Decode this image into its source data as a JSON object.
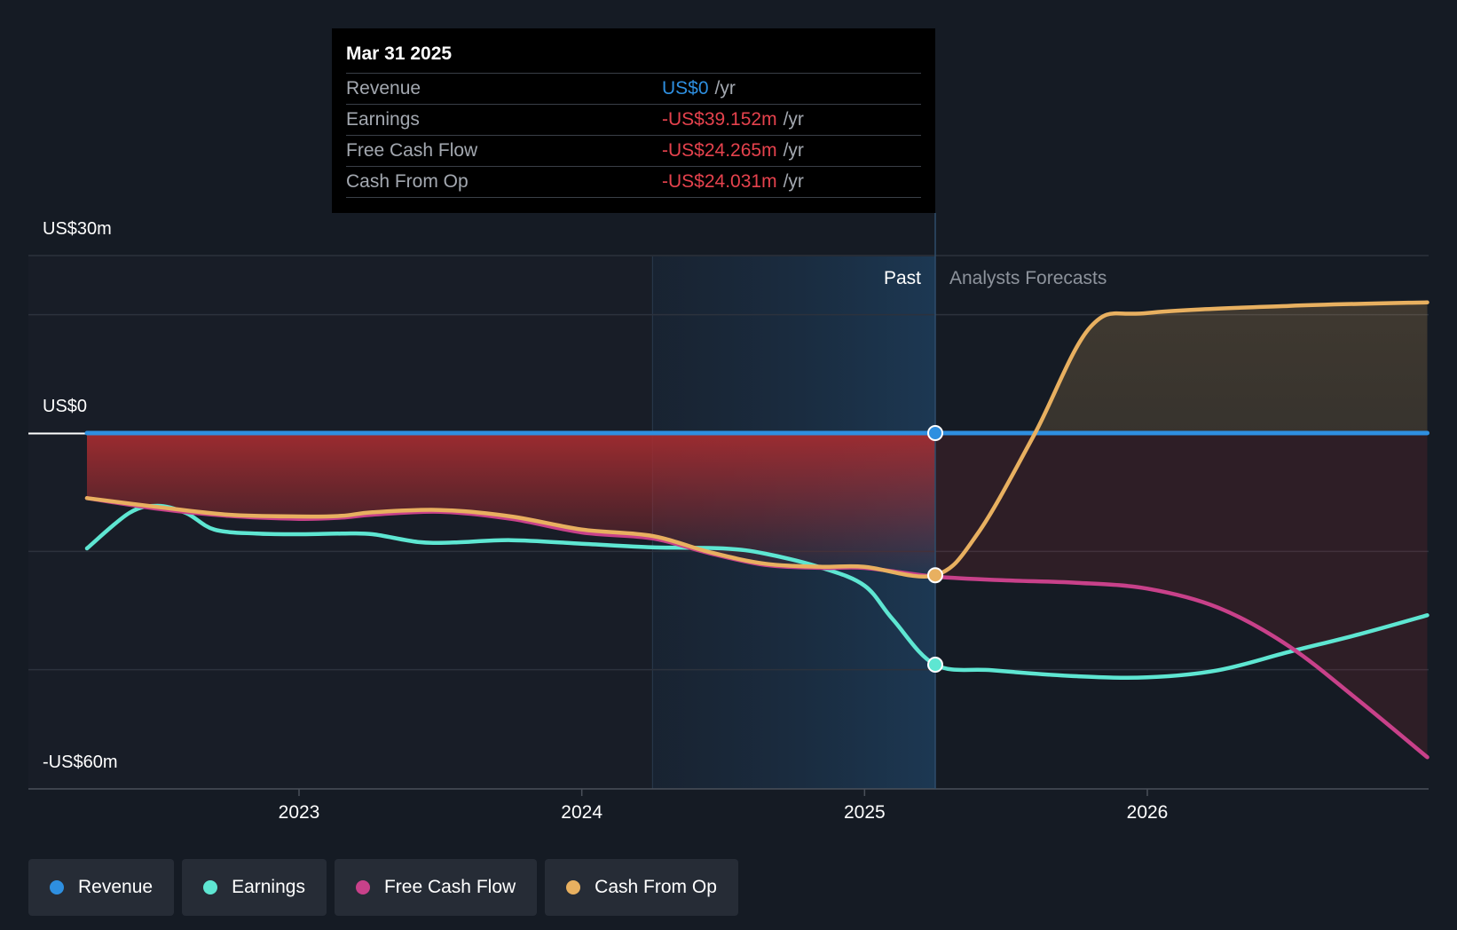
{
  "tooltip": {
    "date": "Mar 31 2025",
    "rows": [
      {
        "label": "Revenue",
        "value": "US$0",
        "unit": "/yr"
      },
      {
        "label": "Earnings",
        "value": "-US$39.152m",
        "unit": "/yr"
      },
      {
        "label": "Free Cash Flow",
        "value": "-US$24.265m",
        "unit": "/yr"
      },
      {
        "label": "Cash From Op",
        "value": "-US$24.031m",
        "unit": "/yr"
      }
    ]
  },
  "legend": [
    {
      "label": "Revenue",
      "color": "#2e8fe0"
    },
    {
      "label": "Earnings",
      "color": "#5ee6d2"
    },
    {
      "label": "Free Cash Flow",
      "color": "#c8418a"
    },
    {
      "label": "Cash From Op",
      "color": "#e8b060"
    }
  ],
  "chart_data": {
    "type": "line",
    "y_labels": [
      "US$30m",
      "US$0",
      "-US$60m"
    ],
    "x_ticks": [
      {
        "year": 2023,
        "label": "2023"
      },
      {
        "year": 2024,
        "label": "2024"
      },
      {
        "year": 2025,
        "label": "2025"
      },
      {
        "year": 2026,
        "label": "2026"
      }
    ],
    "ylim": [
      -60,
      30
    ],
    "xlim": [
      2022.2,
      2026.99
    ],
    "past_label": "Past",
    "forecast_label": "Analysts Forecasts",
    "past_start": 2024.25,
    "current": 2025.25,
    "grid": true,
    "series": [
      {
        "name": "Revenue",
        "color": "#2e8fe0",
        "points": [
          [
            2022.25,
            0
          ],
          [
            2025.25,
            0
          ],
          [
            2026.99,
            0
          ]
        ]
      },
      {
        "name": "Earnings",
        "color": "#5ee6d2",
        "points": [
          [
            2022.25,
            -19.5
          ],
          [
            2022.4,
            -13.5
          ],
          [
            2022.5,
            -12.3
          ],
          [
            2022.6,
            -13.5
          ],
          [
            2022.7,
            -16.3
          ],
          [
            2022.85,
            -17.0
          ],
          [
            2023.0,
            -17.1
          ],
          [
            2023.15,
            -17.0
          ],
          [
            2023.26,
            -17.1
          ],
          [
            2023.42,
            -18.4
          ],
          [
            2023.55,
            -18.5
          ],
          [
            2023.75,
            -18.1
          ],
          [
            2024.0,
            -18.7
          ],
          [
            2024.25,
            -19.3
          ],
          [
            2024.5,
            -19.5
          ],
          [
            2024.65,
            -20.4
          ],
          [
            2024.85,
            -22.8
          ],
          [
            2025.0,
            -25.8
          ],
          [
            2025.1,
            -31.5
          ],
          [
            2025.25,
            -39.152
          ],
          [
            2025.45,
            -40.1
          ],
          [
            2025.75,
            -41.1
          ],
          [
            2026.0,
            -41.3
          ],
          [
            2026.25,
            -40.1
          ],
          [
            2026.5,
            -37.0
          ],
          [
            2026.75,
            -34.0
          ],
          [
            2026.99,
            -30.8
          ]
        ]
      },
      {
        "name": "Free Cash Flow",
        "color": "#c8418a",
        "points": [
          [
            2022.25,
            -11.0
          ],
          [
            2022.5,
            -12.8
          ],
          [
            2022.75,
            -14.0
          ],
          [
            2023.0,
            -14.5
          ],
          [
            2023.15,
            -14.3
          ],
          [
            2023.26,
            -13.8
          ],
          [
            2023.5,
            -13.3
          ],
          [
            2023.75,
            -14.5
          ],
          [
            2024.0,
            -16.8
          ],
          [
            2024.25,
            -17.8
          ],
          [
            2024.45,
            -20.3
          ],
          [
            2024.65,
            -22.3
          ],
          [
            2024.85,
            -22.8
          ],
          [
            2025.0,
            -22.8
          ],
          [
            2025.25,
            -24.265
          ],
          [
            2025.5,
            -24.9
          ],
          [
            2025.75,
            -25.3
          ],
          [
            2026.0,
            -26.3
          ],
          [
            2026.25,
            -29.5
          ],
          [
            2026.5,
            -36.0
          ],
          [
            2026.75,
            -45.3
          ],
          [
            2026.99,
            -54.8
          ]
        ]
      },
      {
        "name": "Cash From Op",
        "color": "#e8b060",
        "points": [
          [
            2022.25,
            -11.0
          ],
          [
            2022.5,
            -12.5
          ],
          [
            2022.75,
            -13.8
          ],
          [
            2023.0,
            -14.1
          ],
          [
            2023.15,
            -14.0
          ],
          [
            2023.26,
            -13.4
          ],
          [
            2023.5,
            -13.0
          ],
          [
            2023.75,
            -14.1
          ],
          [
            2024.0,
            -16.3
          ],
          [
            2024.25,
            -17.4
          ],
          [
            2024.45,
            -20.1
          ],
          [
            2024.65,
            -22.1
          ],
          [
            2024.85,
            -22.6
          ],
          [
            2025.0,
            -22.6
          ],
          [
            2025.25,
            -24.031
          ],
          [
            2025.4,
            -17.0
          ],
          [
            2025.6,
            -0.3
          ],
          [
            2025.8,
            18.0
          ],
          [
            2026.0,
            20.3
          ],
          [
            2026.5,
            21.5
          ],
          [
            2026.99,
            22.1
          ]
        ]
      }
    ]
  }
}
